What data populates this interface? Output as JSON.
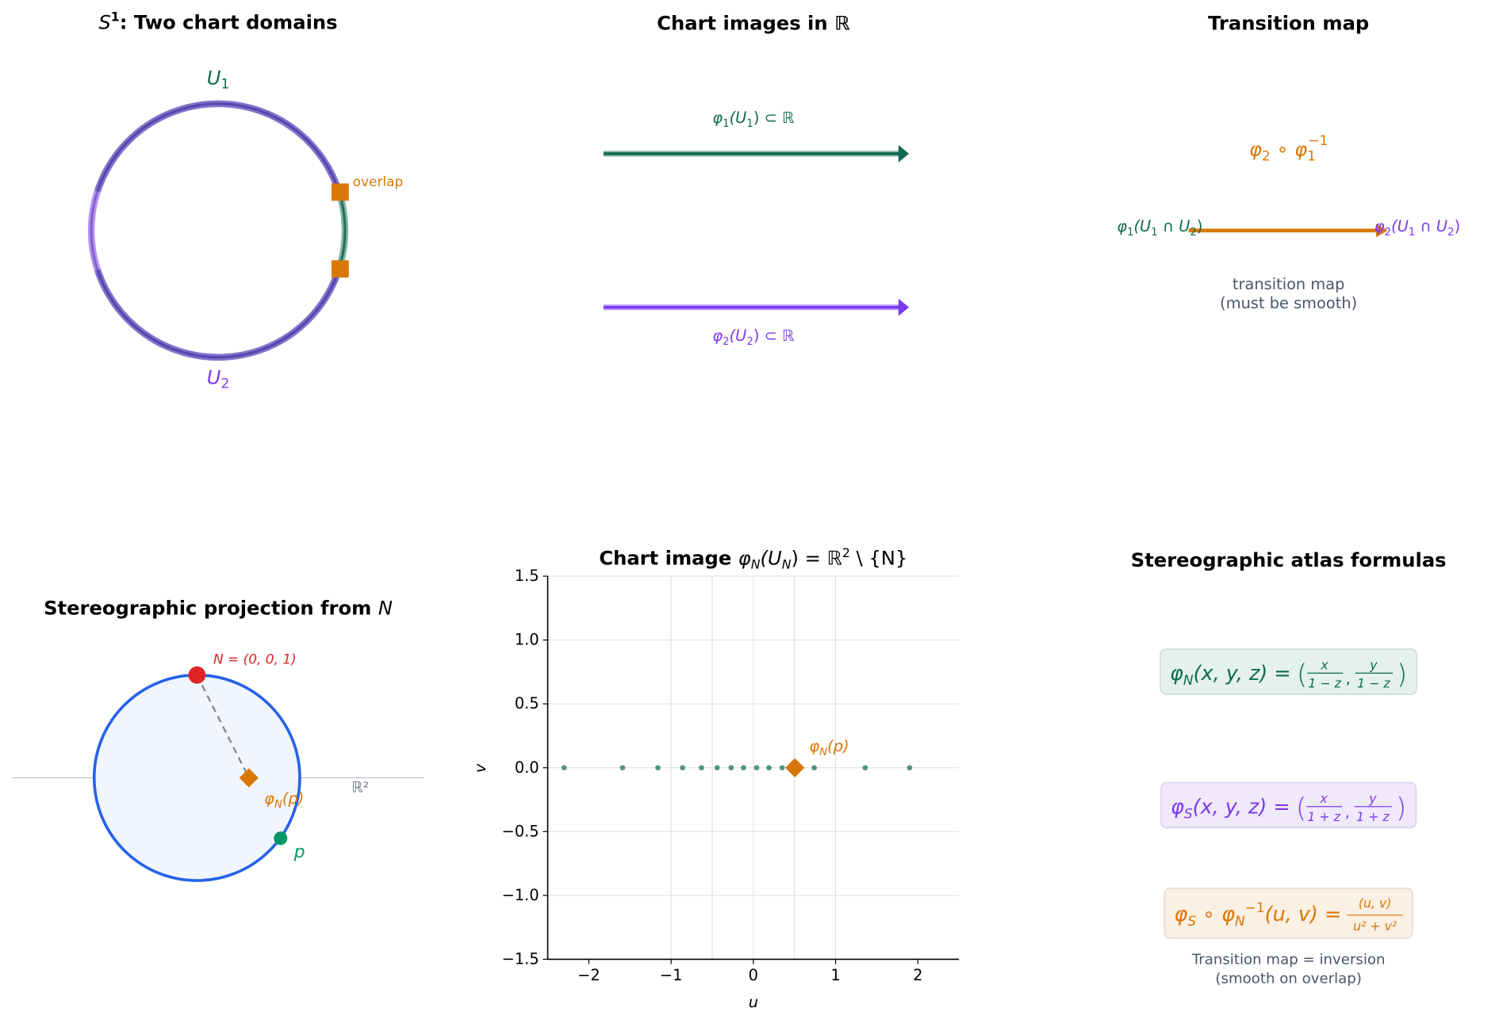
{
  "colors": {
    "green": "#0f6b50",
    "purple": "#7c3aed",
    "orange": "#d97706",
    "blue": "#2563eb",
    "red": "#dc2626",
    "point_green": "#059669",
    "gray_text": "#4a5568"
  },
  "panel1": {
    "title_s": "S",
    "title_sup": "1",
    "title_rest": ": Two chart domains",
    "u1": "U",
    "u1_sub": "1",
    "u2": "U",
    "u2_sub": "2",
    "overlap_label": "overlap"
  },
  "panel2": {
    "title": "Chart images in ℝ",
    "label1": {
      "phi": "φ",
      "sub": "1",
      "rest": "(U",
      "rsub": "1",
      "end": ") ⊂ ℝ"
    },
    "label2": {
      "phi": "φ",
      "sub": "2",
      "rest": "(U",
      "rsub": "2",
      "end": ") ⊂ ℝ"
    }
  },
  "panel3": {
    "title": "Transition map",
    "composite": {
      "a": "φ",
      "asub": "2",
      "op": " ∘ ",
      "b": "φ",
      "bsub": "1",
      "bsup": "−1"
    },
    "left_label": {
      "phi": "φ",
      "sub": "1",
      "rest": "(U",
      "s1": "1",
      "cap": " ∩ U",
      "s2": "2",
      "end": ")"
    },
    "right_label": {
      "phi": "φ",
      "sub": "2",
      "rest": "(U",
      "s1": "1",
      "cap": " ∩ U",
      "s2": "2",
      "end": ")"
    },
    "caption_line1": "transition map",
    "caption_line2": "(must be smooth)"
  },
  "panel4": {
    "title": "Stereographic projection from ",
    "title_var": "N",
    "north_label": "N = (0, 0, 1)",
    "proj_label": {
      "phi": "φ",
      "sub": "N",
      "rest": "(p)"
    },
    "p_label": "p",
    "plane_label": "ℝ²"
  },
  "chart_data": {
    "type": "scatter",
    "title": "Chart image φN(UN) = ℝ² \\ {N}",
    "title_parts": {
      "a": "Chart image ",
      "phi": "φ",
      "sub": "N",
      "b": "(U",
      "bsub": "N",
      "c": ") = ℝ",
      "sup": "2",
      "d": " \\ {N}"
    },
    "xlabel": "u",
    "ylabel": "v",
    "xlim": [
      -2.5,
      2.5
    ],
    "ylim": [
      -1.5,
      1.5
    ],
    "xticks": [
      -2,
      -1,
      0,
      1,
      2
    ],
    "xtick_labels": [
      "−2",
      "−1",
      "0",
      "1",
      "2"
    ],
    "yticks": [
      -1.5,
      -1.0,
      -0.5,
      0.0,
      0.5,
      1.0,
      1.5
    ],
    "ytick_labels": [
      "−1.5",
      "−1.0",
      "−0.5",
      "0.0",
      "0.5",
      "1.0",
      "1.5"
    ],
    "vgrid": [
      -1,
      -0.5,
      0,
      0.5,
      1
    ],
    "grid": true,
    "points": {
      "u": [
        -2.3,
        -1.59,
        -1.16,
        -0.86,
        -0.63,
        -0.44,
        -0.27,
        -0.12,
        0.04,
        0.19,
        0.35,
        0.74,
        1.36,
        1.9
      ],
      "v": [
        0,
        0,
        0,
        0,
        0,
        0,
        0,
        0,
        0,
        0,
        0,
        0,
        0,
        0
      ]
    },
    "highlight": {
      "u": 0.505,
      "v": 0.0,
      "label": {
        "phi": "φ",
        "sub": "N",
        "rest": "(p)"
      }
    }
  },
  "panel6": {
    "title": "Stereographic atlas formulas",
    "formula_n": {
      "phi": "φ",
      "sub": "N",
      "lhs": "(x, y, z) = ",
      "n1": "x",
      "d1": "1 − z",
      "n2": "y",
      "d2": "1 − z"
    },
    "formula_s": {
      "phi": "φ",
      "sub": "S",
      "lhs": "(x, y, z) = ",
      "n1": "x",
      "d1": "1 + z",
      "n2": "y",
      "d2": "1 + z"
    },
    "formula_t": {
      "phi": "φ",
      "sub": "S",
      "op": " ∘ ",
      "phi2": "φ",
      "sub2": "N",
      "sup2": "−1",
      "lhs": "(u, v) = ",
      "num": "(u, v)",
      "den": "u² + v²"
    },
    "note_line1": "Transition map = inversion",
    "note_line2": "(smooth on overlap)"
  }
}
